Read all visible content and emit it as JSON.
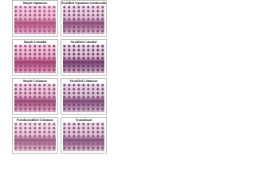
{
  "cells": [
    {
      "title": "Simple Squamous"
    },
    {
      "title": "Stratified Squamous (nonkeratinized)"
    },
    {
      "title": "Simple Cuboidal"
    },
    {
      "title": "Stratified Cuboidal"
    },
    {
      "title": "Simple Columnar"
    },
    {
      "title": "Stratified Columnar"
    },
    {
      "title": "Pseudostratified Columnar"
    },
    {
      "title": "Transitional"
    }
  ]
}
